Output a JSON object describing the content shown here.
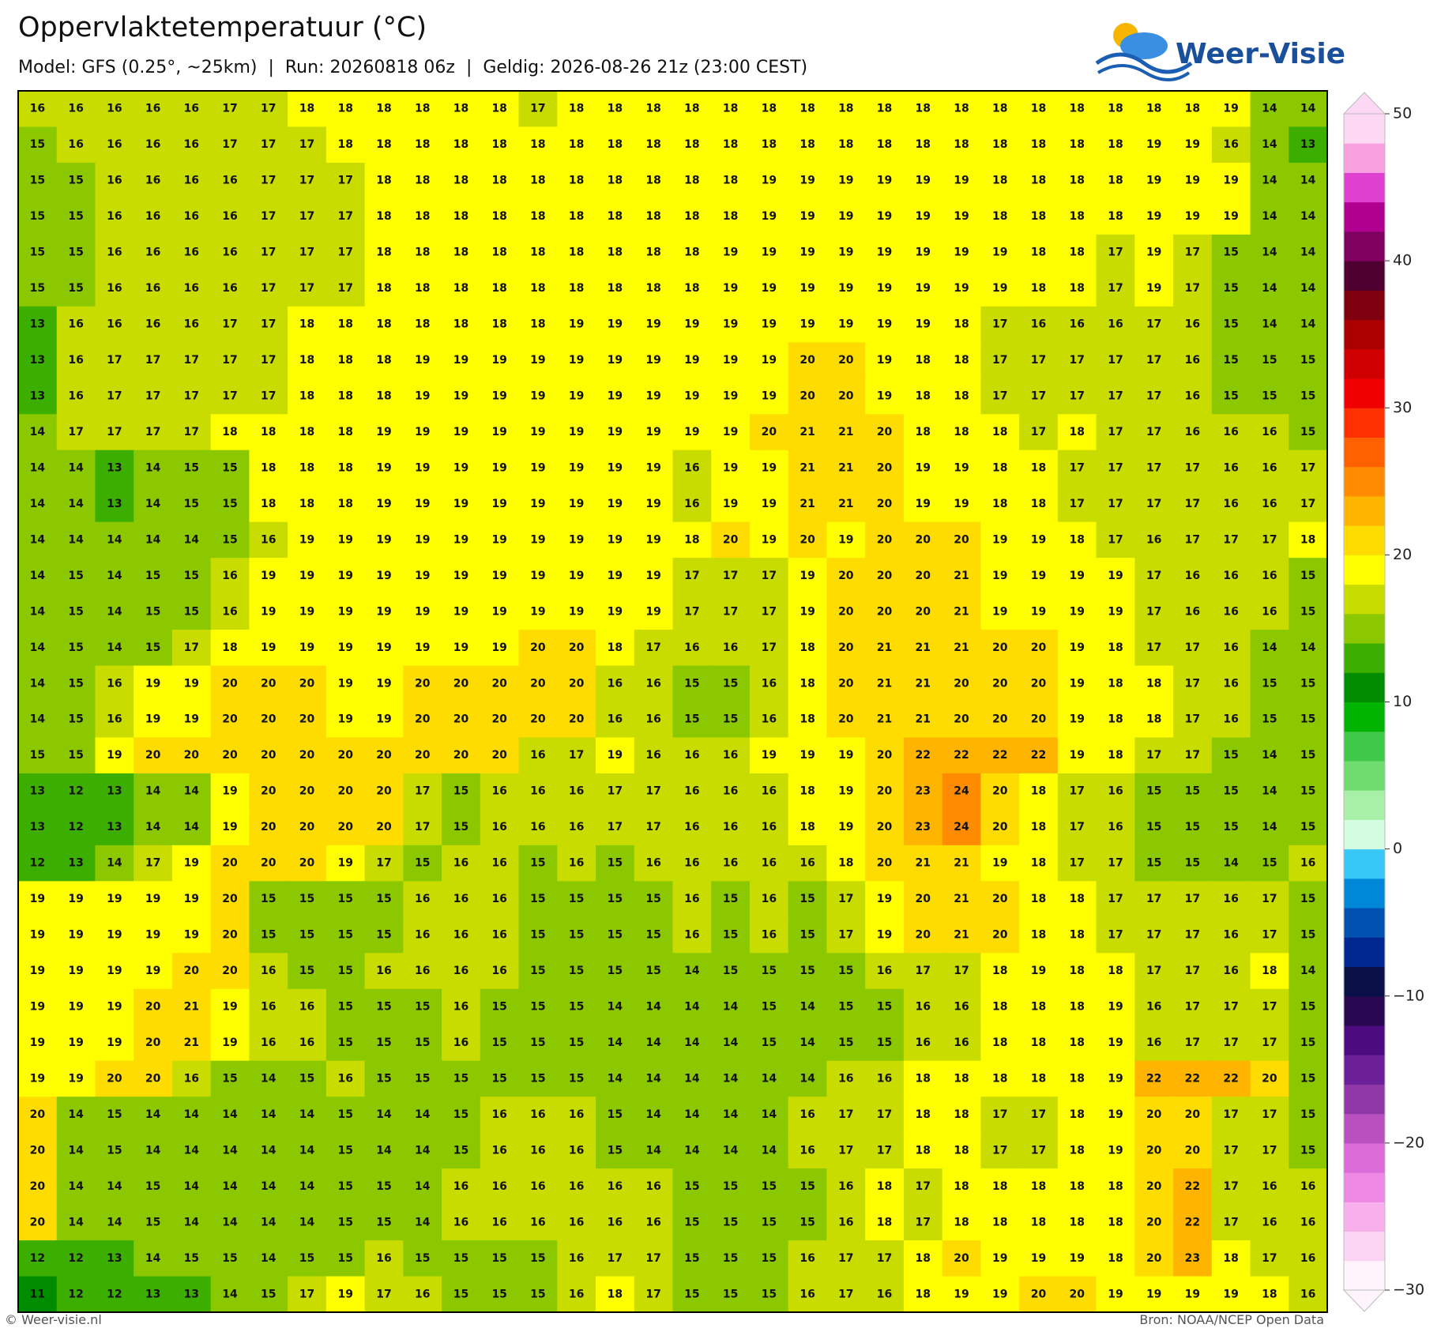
{
  "chart_data": {
    "type": "heatmap",
    "title": "Oppervlaktetemperatuur (°C)",
    "subtitle": "Model: GFS (0.25°, ~25km)  |  Run: 20260818 06z  |  Geldig: 2026-08-26 21z (23:00 CEST)",
    "logo": "Weer-Visie",
    "credit": "© Weer-visie.nl",
    "source": "Bron: NOAA/NCEP Open Data",
    "rows": [
      [
        16,
        16,
        16,
        16,
        16,
        17,
        17,
        18,
        18,
        18,
        18,
        18,
        18,
        17,
        18,
        18,
        18,
        18,
        18,
        18,
        18,
        18,
        18,
        18,
        18,
        18,
        18,
        18,
        18,
        18,
        18,
        19,
        14,
        14
      ],
      [
        15,
        16,
        16,
        16,
        16,
        17,
        17,
        17,
        18,
        18,
        18,
        18,
        18,
        18,
        18,
        18,
        18,
        18,
        18,
        18,
        18,
        18,
        18,
        18,
        18,
        18,
        18,
        18,
        18,
        19,
        19,
        16,
        14,
        13
      ],
      [
        15,
        15,
        16,
        16,
        16,
        16,
        17,
        17,
        17,
        18,
        18,
        18,
        18,
        18,
        18,
        18,
        18,
        18,
        18,
        19,
        19,
        19,
        19,
        19,
        19,
        18,
        18,
        18,
        18,
        19,
        19,
        19,
        14,
        14
      ],
      [
        15,
        15,
        16,
        16,
        16,
        16,
        17,
        17,
        17,
        18,
        18,
        18,
        18,
        18,
        18,
        18,
        18,
        18,
        18,
        19,
        19,
        19,
        19,
        19,
        19,
        18,
        18,
        18,
        18,
        19,
        19,
        19,
        14,
        14
      ],
      [
        15,
        15,
        16,
        16,
        16,
        16,
        17,
        17,
        17,
        18,
        18,
        18,
        18,
        18,
        18,
        18,
        18,
        18,
        19,
        19,
        19,
        19,
        19,
        19,
        19,
        19,
        18,
        18,
        17,
        19,
        17,
        15,
        14,
        14
      ],
      [
        15,
        15,
        16,
        16,
        16,
        16,
        17,
        17,
        17,
        18,
        18,
        18,
        18,
        18,
        18,
        18,
        18,
        18,
        19,
        19,
        19,
        19,
        19,
        19,
        19,
        19,
        18,
        18,
        17,
        19,
        17,
        15,
        14,
        14
      ],
      [
        13,
        16,
        16,
        16,
        16,
        17,
        17,
        18,
        18,
        18,
        18,
        18,
        18,
        18,
        19,
        19,
        19,
        19,
        19,
        19,
        19,
        19,
        19,
        19,
        18,
        17,
        16,
        16,
        16,
        17,
        16,
        15,
        14,
        14
      ],
      [
        13,
        16,
        17,
        17,
        17,
        17,
        17,
        18,
        18,
        18,
        19,
        19,
        19,
        19,
        19,
        19,
        19,
        19,
        19,
        19,
        20,
        20,
        19,
        18,
        18,
        17,
        17,
        17,
        17,
        17,
        16,
        15,
        15,
        15
      ],
      [
        13,
        16,
        17,
        17,
        17,
        17,
        17,
        18,
        18,
        18,
        19,
        19,
        19,
        19,
        19,
        19,
        19,
        19,
        19,
        19,
        20,
        20,
        19,
        18,
        18,
        17,
        17,
        17,
        17,
        17,
        16,
        15,
        15,
        15
      ],
      [
        14,
        17,
        17,
        17,
        17,
        18,
        18,
        18,
        18,
        19,
        19,
        19,
        19,
        19,
        19,
        19,
        19,
        19,
        19,
        20,
        21,
        21,
        20,
        18,
        18,
        18,
        17,
        18,
        17,
        17,
        16,
        16,
        16,
        15
      ],
      [
        14,
        14,
        13,
        14,
        15,
        15,
        18,
        18,
        18,
        19,
        19,
        19,
        19,
        19,
        19,
        19,
        19,
        16,
        19,
        19,
        21,
        21,
        20,
        19,
        19,
        18,
        18,
        17,
        17,
        17,
        17,
        16,
        16,
        17
      ],
      [
        14,
        14,
        13,
        14,
        15,
        15,
        18,
        18,
        18,
        19,
        19,
        19,
        19,
        19,
        19,
        19,
        19,
        16,
        19,
        19,
        21,
        21,
        20,
        19,
        19,
        18,
        18,
        17,
        17,
        17,
        17,
        16,
        16,
        17
      ],
      [
        14,
        14,
        14,
        14,
        14,
        15,
        16,
        19,
        19,
        19,
        19,
        19,
        19,
        19,
        19,
        19,
        19,
        18,
        20,
        19,
        20,
        19,
        20,
        20,
        20,
        19,
        19,
        18,
        17,
        16,
        17,
        17,
        17,
        18
      ],
      [
        14,
        15,
        14,
        15,
        15,
        16,
        19,
        19,
        19,
        19,
        19,
        19,
        19,
        19,
        19,
        19,
        19,
        17,
        17,
        17,
        19,
        20,
        20,
        20,
        21,
        19,
        19,
        19,
        19,
        17,
        16,
        16,
        16,
        15
      ],
      [
        14,
        15,
        14,
        15,
        15,
        16,
        19,
        19,
        19,
        19,
        19,
        19,
        19,
        19,
        19,
        19,
        19,
        17,
        17,
        17,
        19,
        20,
        20,
        20,
        21,
        19,
        19,
        19,
        19,
        17,
        16,
        16,
        16,
        15
      ],
      [
        14,
        15,
        14,
        15,
        17,
        18,
        19,
        19,
        19,
        19,
        19,
        19,
        19,
        20,
        20,
        18,
        17,
        16,
        16,
        17,
        18,
        20,
        21,
        21,
        21,
        20,
        20,
        19,
        18,
        17,
        17,
        16,
        14,
        14
      ],
      [
        14,
        15,
        16,
        19,
        19,
        20,
        20,
        20,
        19,
        19,
        20,
        20,
        20,
        20,
        20,
        16,
        16,
        15,
        15,
        16,
        18,
        20,
        21,
        21,
        20,
        20,
        20,
        19,
        18,
        18,
        17,
        16,
        15,
        15
      ],
      [
        14,
        15,
        16,
        19,
        19,
        20,
        20,
        20,
        19,
        19,
        20,
        20,
        20,
        20,
        20,
        16,
        16,
        15,
        15,
        16,
        18,
        20,
        21,
        21,
        20,
        20,
        20,
        19,
        18,
        18,
        17,
        16,
        15,
        15
      ],
      [
        15,
        15,
        19,
        20,
        20,
        20,
        20,
        20,
        20,
        20,
        20,
        20,
        20,
        16,
        17,
        19,
        16,
        16,
        16,
        19,
        19,
        19,
        20,
        22,
        22,
        22,
        22,
        19,
        18,
        17,
        17,
        15,
        14,
        15
      ],
      [
        13,
        12,
        13,
        14,
        14,
        19,
        20,
        20,
        20,
        20,
        17,
        15,
        16,
        16,
        16,
        17,
        17,
        16,
        16,
        16,
        18,
        19,
        20,
        23,
        24,
        20,
        18,
        17,
        16,
        15,
        15,
        15,
        14,
        15
      ],
      [
        13,
        12,
        13,
        14,
        14,
        19,
        20,
        20,
        20,
        20,
        17,
        15,
        16,
        16,
        16,
        17,
        17,
        16,
        16,
        16,
        18,
        19,
        20,
        23,
        24,
        20,
        18,
        17,
        16,
        15,
        15,
        15,
        14,
        15
      ],
      [
        12,
        13,
        14,
        17,
        19,
        20,
        20,
        20,
        19,
        17,
        15,
        16,
        16,
        15,
        16,
        15,
        16,
        16,
        16,
        16,
        16,
        18,
        20,
        21,
        21,
        19,
        18,
        17,
        17,
        15,
        15,
        14,
        15,
        16
      ],
      [
        19,
        19,
        19,
        19,
        19,
        20,
        15,
        15,
        15,
        15,
        16,
        16,
        16,
        15,
        15,
        15,
        15,
        16,
        15,
        16,
        15,
        17,
        19,
        20,
        21,
        20,
        18,
        18,
        17,
        17,
        17,
        16,
        17,
        15
      ],
      [
        19,
        19,
        19,
        19,
        19,
        20,
        15,
        15,
        15,
        15,
        16,
        16,
        16,
        15,
        15,
        15,
        15,
        16,
        15,
        16,
        15,
        17,
        19,
        20,
        21,
        20,
        18,
        18,
        17,
        17,
        17,
        16,
        17,
        15
      ],
      [
        19,
        19,
        19,
        19,
        20,
        20,
        16,
        15,
        15,
        16,
        16,
        16,
        16,
        15,
        15,
        15,
        15,
        14,
        15,
        15,
        15,
        15,
        16,
        17,
        17,
        18,
        19,
        18,
        18,
        17,
        17,
        16,
        18,
        14
      ],
      [
        19,
        19,
        19,
        20,
        21,
        19,
        16,
        16,
        15,
        15,
        15,
        16,
        15,
        15,
        15,
        14,
        14,
        14,
        14,
        15,
        14,
        15,
        15,
        16,
        16,
        18,
        18,
        18,
        19,
        16,
        17,
        17,
        17,
        15
      ],
      [
        19,
        19,
        19,
        20,
        21,
        19,
        16,
        16,
        15,
        15,
        15,
        16,
        15,
        15,
        15,
        14,
        14,
        14,
        14,
        15,
        14,
        15,
        15,
        16,
        16,
        18,
        18,
        18,
        19,
        16,
        17,
        17,
        17,
        15
      ],
      [
        19,
        19,
        20,
        20,
        16,
        15,
        14,
        15,
        16,
        15,
        15,
        15,
        15,
        15,
        15,
        14,
        14,
        14,
        14,
        14,
        14,
        16,
        16,
        18,
        18,
        18,
        18,
        18,
        19,
        22,
        22,
        22,
        20,
        15
      ],
      [
        20,
        14,
        15,
        14,
        14,
        14,
        14,
        14,
        15,
        14,
        14,
        15,
        16,
        16,
        16,
        15,
        14,
        14,
        14,
        14,
        16,
        17,
        17,
        18,
        18,
        17,
        17,
        18,
        19,
        20,
        20,
        17,
        17,
        15
      ],
      [
        20,
        14,
        15,
        14,
        14,
        14,
        14,
        14,
        15,
        14,
        14,
        15,
        16,
        16,
        16,
        15,
        14,
        14,
        14,
        14,
        16,
        17,
        17,
        18,
        18,
        17,
        17,
        18,
        19,
        20,
        20,
        17,
        17,
        15
      ],
      [
        20,
        14,
        14,
        15,
        14,
        14,
        14,
        14,
        15,
        15,
        14,
        16,
        16,
        16,
        16,
        16,
        16,
        15,
        15,
        15,
        15,
        16,
        18,
        17,
        18,
        18,
        18,
        18,
        18,
        20,
        22,
        17,
        16,
        16
      ],
      [
        20,
        14,
        14,
        15,
        14,
        14,
        14,
        14,
        15,
        15,
        14,
        16,
        16,
        16,
        16,
        16,
        16,
        15,
        15,
        15,
        15,
        16,
        18,
        17,
        18,
        18,
        18,
        18,
        18,
        20,
        22,
        17,
        16,
        16
      ],
      [
        12,
        12,
        13,
        14,
        15,
        15,
        14,
        15,
        15,
        16,
        15,
        15,
        15,
        15,
        16,
        17,
        17,
        15,
        15,
        15,
        16,
        17,
        17,
        18,
        20,
        19,
        19,
        19,
        18,
        20,
        23,
        18,
        17,
        16
      ],
      [
        11,
        12,
        12,
        13,
        13,
        14,
        15,
        17,
        19,
        17,
        16,
        15,
        15,
        15,
        16,
        18,
        17,
        15,
        15,
        15,
        16,
        17,
        16,
        18,
        19,
        19,
        20,
        20,
        19,
        19,
        19,
        19,
        18,
        16
      ]
    ],
    "clim": [
      -30,
      50
    ],
    "cticks": [
      {
        "value": -30,
        "label": "−30"
      },
      {
        "value": -20,
        "label": "−20"
      },
      {
        "value": -10,
        "label": "−10"
      },
      0,
      10,
      20,
      30,
      40,
      50
    ],
    "colors": [
      "#fff4fc",
      "#fcd4f4",
      "#f8b0ec",
      "#ee88e4",
      "#dc6cd8",
      "#b850c0",
      "#9038a8",
      "#6c2098",
      "#4c0c80",
      "#280850",
      "#0a1048",
      "#002890",
      "#0050b0",
      "#0088d8",
      "#38c8f8",
      "#d4fce0",
      "#a8f0a8",
      "#70dc70",
      "#40c848",
      "#00b400",
      "#008c00",
      "#3cae00",
      "#8cc800",
      "#c8dc00",
      "#ffff00",
      "#ffdc00",
      "#ffb400",
      "#ff8c00",
      "#ff6000",
      "#ff3000",
      "#f00000",
      "#d00000",
      "#aa0000",
      "#800010",
      "#500030",
      "#800060",
      "#b00090",
      "#e040d0",
      "#f8a0e0",
      "#fcd8f4"
    ]
  }
}
